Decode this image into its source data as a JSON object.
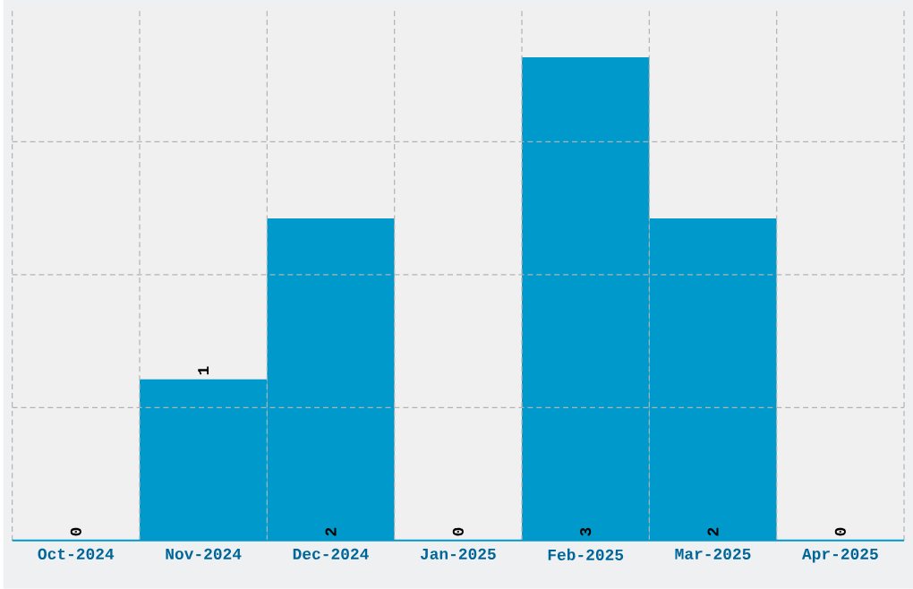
{
  "chart_data": {
    "type": "bar",
    "categories": [
      "Oct-2024",
      "Nov-2024",
      "Dec-2024",
      "Jan-2025",
      "Feb-2025",
      "Mar-2025",
      "Apr-2025"
    ],
    "values": [
      0,
      1,
      2,
      0,
      3,
      2,
      0
    ],
    "color": "#0099cc",
    "ylim": [
      0,
      3.3
    ],
    "tick_labels": "x",
    "grid": true,
    "data_labels": true
  }
}
